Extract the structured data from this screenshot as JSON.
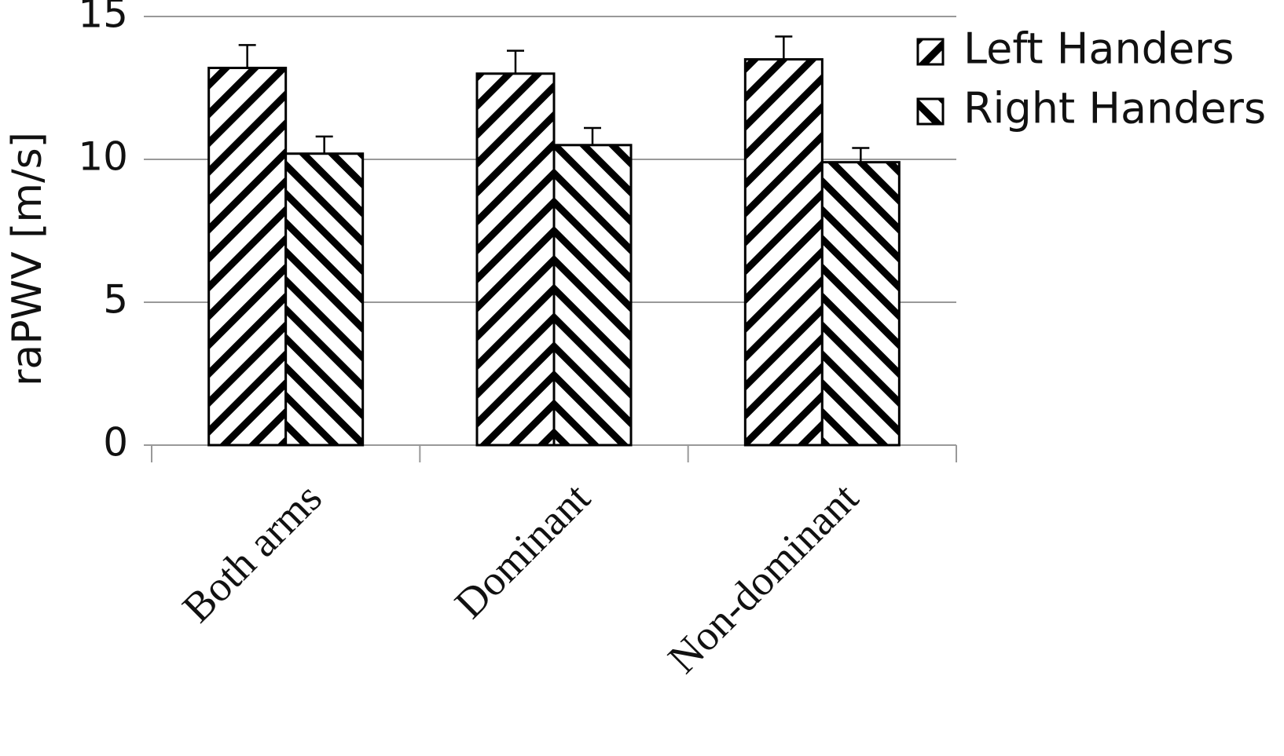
{
  "chart_data": {
    "type": "bar",
    "y_label": "raPWV [m/s]",
    "categories": [
      "Both arms",
      "Dominant",
      "Non-dominant"
    ],
    "series": [
      {
        "name": "Left Handers",
        "color": "#000000",
        "pattern": "diagonal-up",
        "values": [
          13.2,
          13.0,
          13.5
        ],
        "errors": [
          0.8,
          0.8,
          0.8
        ]
      },
      {
        "name": "Right Handers",
        "color": "#000000",
        "pattern": "diagonal-down",
        "values": [
          10.2,
          10.5,
          9.9
        ],
        "errors": [
          0.6,
          0.6,
          0.5
        ]
      }
    ],
    "ylim": [
      0,
      15
    ],
    "yticks": [
      0,
      5,
      10,
      15
    ],
    "grid": true,
    "legend": "top-right"
  }
}
